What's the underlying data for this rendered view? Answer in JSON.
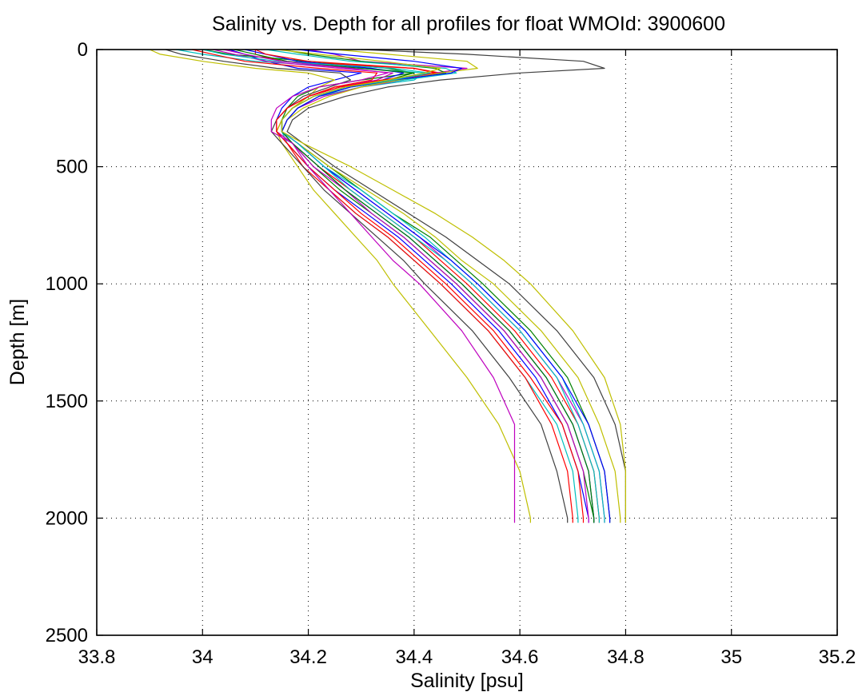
{
  "chart_data": {
    "type": "line",
    "title": "Salinity vs. Depth for all profiles for float WMOId: 3900600",
    "xlabel": "Salinity [psu]",
    "ylabel": "Depth [m]",
    "xlim": [
      33.8,
      35.2
    ],
    "ylim": [
      0,
      2500
    ],
    "y_reversed": true,
    "grid": true,
    "x_ticks": [
      33.8,
      34.0,
      34.2,
      34.4,
      34.6,
      34.8,
      35.0,
      35.2
    ],
    "x_tick_labels": [
      "33.8",
      "34",
      "34.2",
      "34.4",
      "34.6",
      "34.8",
      "35",
      "35.2"
    ],
    "y_ticks": [
      0,
      500,
      1000,
      1500,
      2000,
      2500
    ],
    "y_tick_labels": [
      "0",
      "500",
      "1000",
      "1500",
      "2000",
      "2500"
    ],
    "colors": [
      "#0000ff",
      "#008000",
      "#ff0000",
      "#00bfbf",
      "#bf00bf",
      "#bfbf00",
      "#404040"
    ],
    "profile_depths": [
      0,
      20,
      50,
      80,
      100,
      130,
      160,
      200,
      250,
      300,
      350,
      400,
      500,
      600,
      700,
      800,
      900,
      1000,
      1200,
      1400,
      1600,
      1800,
      2000,
      2020
    ],
    "series": [
      {
        "values": [
          34.05,
          34.08,
          34.12,
          34.18,
          34.3,
          34.25,
          34.2,
          34.17,
          34.15,
          34.14,
          34.14,
          34.16,
          34.2,
          34.25,
          34.31,
          34.37,
          34.42,
          34.47,
          34.56,
          34.63,
          34.68,
          34.71,
          34.73,
          34.73
        ]
      },
      {
        "values": [
          34.0,
          34.05,
          34.2,
          34.35,
          34.4,
          34.3,
          34.22,
          34.18,
          34.16,
          34.15,
          34.15,
          34.17,
          34.21,
          34.26,
          34.32,
          34.38,
          34.43,
          34.48,
          34.57,
          34.64,
          34.69,
          34.72,
          34.74,
          34.74
        ]
      },
      {
        "values": [
          34.1,
          34.1,
          34.15,
          34.4,
          34.45,
          34.35,
          34.25,
          34.2,
          34.17,
          34.15,
          34.14,
          34.17,
          34.22,
          34.28,
          34.34,
          34.4,
          34.45,
          34.5,
          34.59,
          34.66,
          34.71,
          34.74,
          34.75,
          34.75
        ]
      },
      {
        "values": [
          33.95,
          34.0,
          34.1,
          34.3,
          34.42,
          34.4,
          34.3,
          34.22,
          34.18,
          34.16,
          34.15,
          34.16,
          34.2,
          34.24,
          34.29,
          34.35,
          34.4,
          34.45,
          34.54,
          34.61,
          34.67,
          34.7,
          34.71,
          34.71
        ]
      },
      {
        "values": [
          34.2,
          34.25,
          34.3,
          34.5,
          34.44,
          34.38,
          34.3,
          34.23,
          34.18,
          34.16,
          34.15,
          34.18,
          34.23,
          34.29,
          34.35,
          34.41,
          34.46,
          34.51,
          34.6,
          34.67,
          34.72,
          34.75,
          34.76,
          34.76
        ]
      },
      {
        "values": [
          33.9,
          33.92,
          34.0,
          34.1,
          34.2,
          34.25,
          34.22,
          34.2,
          34.17,
          34.15,
          34.14,
          34.15,
          34.18,
          34.21,
          34.25,
          34.29,
          34.33,
          34.36,
          34.43,
          34.5,
          34.56,
          34.6,
          34.62,
          34.62
        ]
      },
      {
        "values": [
          34.3,
          34.5,
          34.72,
          34.76,
          34.6,
          34.45,
          34.35,
          34.27,
          34.2,
          34.17,
          34.16,
          34.19,
          34.25,
          34.32,
          34.39,
          34.46,
          34.52,
          34.58,
          34.67,
          34.74,
          34.78,
          34.8,
          34.8,
          34.8
        ]
      },
      {
        "values": [
          34.08,
          34.12,
          34.18,
          34.32,
          34.38,
          34.34,
          34.27,
          34.21,
          34.17,
          34.15,
          34.15,
          34.17,
          34.22,
          34.27,
          34.33,
          34.39,
          34.44,
          34.49,
          34.58,
          34.65,
          34.7,
          34.73,
          34.74,
          34.74
        ]
      },
      {
        "values": [
          34.15,
          34.2,
          34.3,
          34.44,
          34.46,
          34.37,
          34.28,
          34.22,
          34.18,
          34.16,
          34.15,
          34.18,
          34.24,
          34.3,
          34.36,
          34.43,
          34.48,
          34.53,
          34.62,
          34.69,
          34.73,
          34.76,
          34.77,
          34.77
        ]
      },
      {
        "values": [
          33.98,
          34.02,
          34.08,
          34.22,
          34.33,
          34.32,
          34.25,
          34.2,
          34.16,
          34.14,
          34.14,
          34.16,
          34.19,
          34.24,
          34.29,
          34.35,
          34.4,
          34.45,
          34.54,
          34.61,
          34.66,
          34.69,
          34.7,
          34.7
        ]
      },
      {
        "values": [
          34.12,
          34.18,
          34.28,
          34.46,
          34.48,
          34.38,
          34.28,
          34.21,
          34.17,
          34.15,
          34.15,
          34.18,
          34.23,
          34.3,
          34.36,
          34.42,
          34.47,
          34.52,
          34.61,
          34.68,
          34.72,
          34.75,
          34.76,
          34.76
        ]
      },
      {
        "values": [
          34.02,
          34.06,
          34.12,
          34.26,
          34.36,
          34.33,
          34.26,
          34.2,
          34.16,
          34.14,
          34.14,
          34.17,
          34.21,
          34.27,
          34.32,
          34.38,
          34.43,
          34.48,
          34.57,
          34.64,
          34.69,
          34.72,
          34.73,
          34.73
        ]
      },
      {
        "values": [
          34.25,
          34.35,
          34.5,
          34.52,
          34.45,
          34.37,
          34.3,
          34.24,
          34.19,
          34.16,
          34.15,
          34.18,
          34.24,
          34.31,
          34.38,
          34.44,
          34.49,
          34.55,
          34.64,
          34.71,
          34.75,
          34.78,
          34.79,
          34.79
        ]
      },
      {
        "values": [
          33.93,
          33.96,
          34.04,
          34.14,
          34.26,
          34.28,
          34.24,
          34.19,
          34.16,
          34.14,
          34.13,
          34.15,
          34.19,
          34.23,
          34.28,
          34.33,
          34.38,
          34.42,
          34.51,
          34.58,
          34.64,
          34.67,
          34.69,
          34.69
        ]
      },
      {
        "values": [
          34.18,
          34.26,
          34.4,
          34.49,
          34.47,
          34.36,
          34.28,
          34.22,
          34.18,
          34.16,
          34.15,
          34.18,
          34.23,
          34.29,
          34.35,
          34.41,
          34.47,
          34.52,
          34.61,
          34.68,
          34.73,
          34.76,
          34.77,
          34.77
        ]
      },
      {
        "values": [
          34.06,
          34.1,
          34.16,
          34.3,
          34.4,
          34.35,
          34.27,
          34.21,
          34.17,
          34.15,
          34.15,
          34.17,
          34.22,
          34.27,
          34.33,
          34.39,
          34.44,
          34.49,
          34.58,
          34.65,
          34.7,
          34.73,
          34.74,
          34.74
        ]
      },
      {
        "values": [
          34.1,
          34.12,
          34.2,
          34.4,
          34.44,
          34.34,
          34.26,
          34.2,
          34.16,
          34.14,
          34.14,
          34.16,
          34.2,
          34.25,
          34.3,
          34.36,
          34.41,
          34.46,
          34.55,
          34.62,
          34.68,
          34.71,
          34.72,
          34.72
        ]
      },
      {
        "values": [
          34.0,
          34.04,
          34.14,
          34.36,
          34.43,
          34.36,
          34.27,
          34.21,
          34.17,
          34.15,
          34.15,
          34.18,
          34.23,
          34.28,
          34.34,
          34.4,
          34.46,
          34.51,
          34.6,
          34.67,
          34.71,
          34.74,
          34.75,
          34.75
        ]
      },
      {
        "values": [
          34.04,
          34.08,
          34.15,
          34.28,
          34.35,
          34.3,
          34.22,
          34.17,
          34.14,
          34.13,
          34.13,
          34.17,
          34.2,
          34.24,
          34.28,
          34.32,
          34.36,
          34.41,
          34.49,
          34.55,
          34.59,
          34.59,
          34.59,
          34.59
        ]
      },
      {
        "values": [
          34.14,
          34.22,
          34.34,
          34.45,
          34.42,
          34.35,
          34.27,
          34.21,
          34.17,
          34.15,
          34.15,
          34.19,
          34.28,
          34.36,
          34.44,
          34.51,
          34.57,
          34.62,
          34.7,
          34.76,
          34.79,
          34.8,
          34.8,
          34.8
        ]
      }
    ]
  }
}
